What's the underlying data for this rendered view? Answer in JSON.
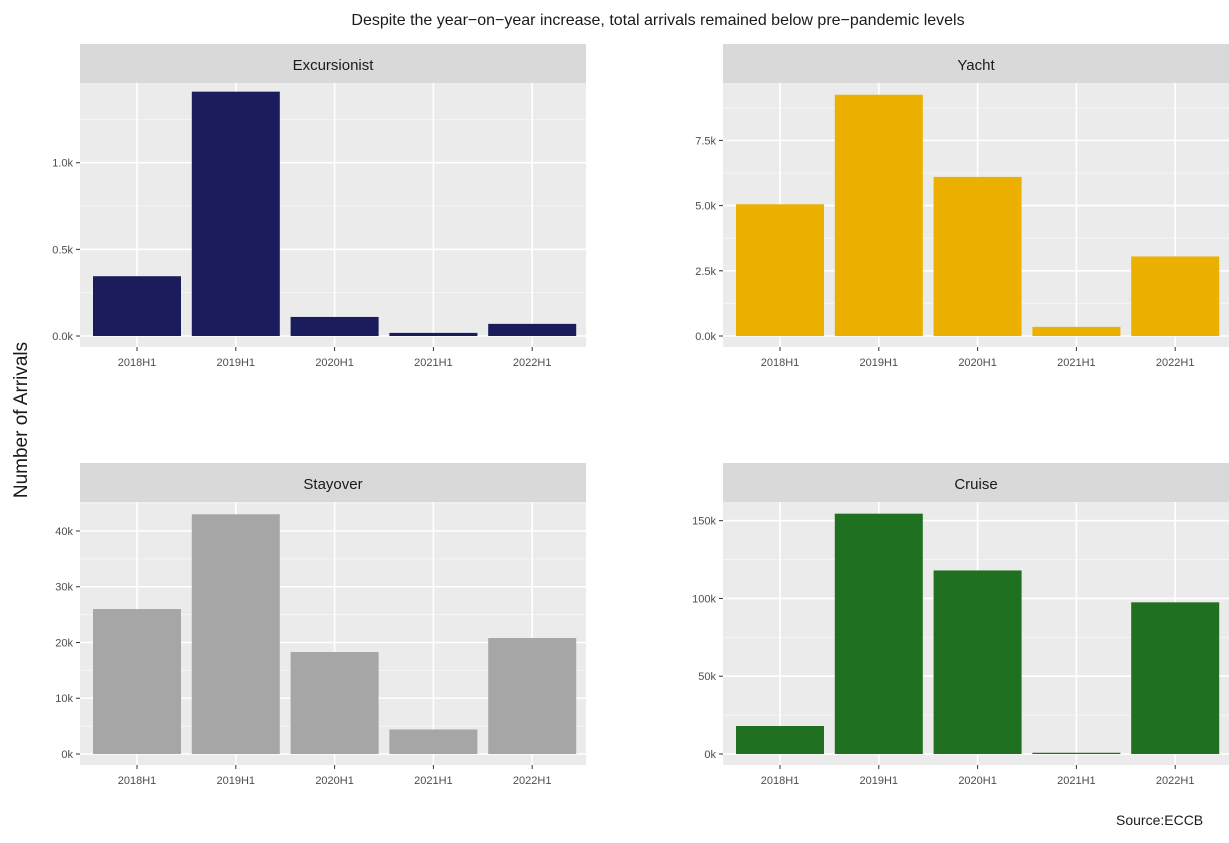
{
  "title": "Despite the year−on−year increase, total arrivals remained below pre−pandemic levels",
  "ylabel": "Number of Arrivals",
  "caption": "Source:ECCB",
  "chart_data": [
    {
      "type": "bar",
      "panel": "Excursionist",
      "color": "#1a1c5c",
      "categories": [
        "2018H1",
        "2019H1",
        "2020H1",
        "2021H1",
        "2022H1"
      ],
      "values": [
        345,
        1410,
        110,
        18,
        70
      ],
      "ylim": [
        0,
        1460
      ],
      "ticks": [
        0,
        500,
        1000
      ],
      "tick_labels": [
        "0.0k",
        "0.5k",
        "1.0k"
      ]
    },
    {
      "type": "bar",
      "panel": "Yacht",
      "color": "#ebb000",
      "categories": [
        "2018H1",
        "2019H1",
        "2020H1",
        "2021H1",
        "2022H1"
      ],
      "values": [
        5050,
        9250,
        6100,
        350,
        3050
      ],
      "ylim": [
        0,
        9700
      ],
      "ticks": [
        0,
        2500,
        5000,
        7500
      ],
      "tick_labels": [
        "0.0k",
        "2.5k",
        "5.0k",
        "7.5k"
      ]
    },
    {
      "type": "bar",
      "panel": "Stayover",
      "color": "#a6a6a6",
      "categories": [
        "2018H1",
        "2019H1",
        "2020H1",
        "2021H1",
        "2022H1"
      ],
      "values": [
        26000,
        43000,
        18300,
        4400,
        20800
      ],
      "ylim": [
        0,
        45200
      ],
      "ticks": [
        0,
        10000,
        20000,
        30000,
        40000
      ],
      "tick_labels": [
        "0k",
        "10k",
        "20k",
        "30k",
        "40k"
      ]
    },
    {
      "type": "bar",
      "panel": "Cruise",
      "color": "#1f7020",
      "categories": [
        "2018H1",
        "2019H1",
        "2020H1",
        "2021H1",
        "2022H1"
      ],
      "values": [
        18000,
        154500,
        118000,
        800,
        97500
      ],
      "ylim": [
        0,
        162000
      ],
      "ticks": [
        0,
        50000,
        100000,
        150000
      ],
      "tick_labels": [
        "0k",
        "50k",
        "100k",
        "150k"
      ]
    }
  ]
}
